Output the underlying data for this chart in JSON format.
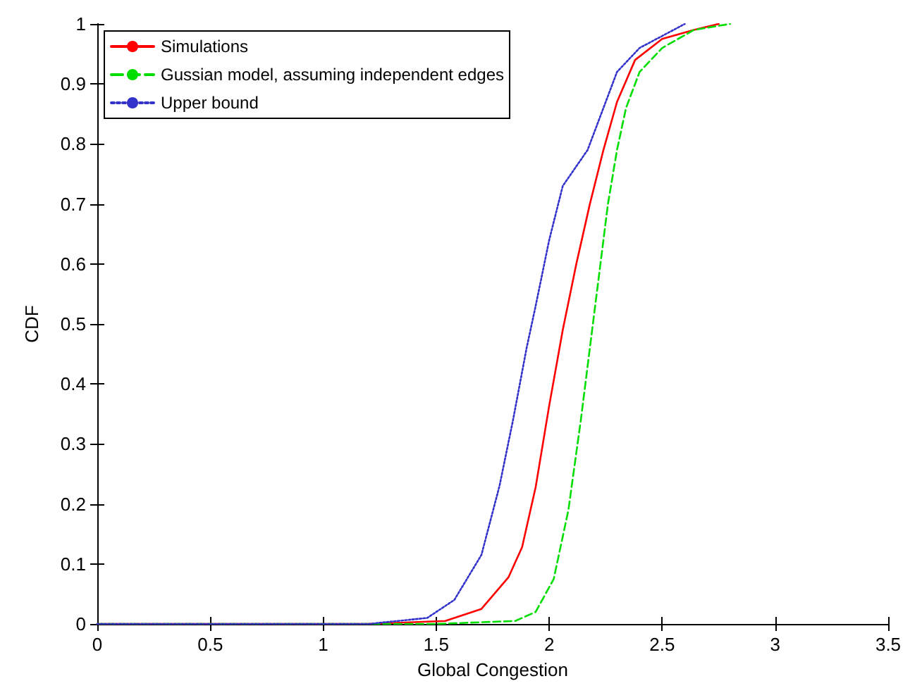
{
  "chart_data": {
    "type": "line",
    "xlabel": "Global Congestion",
    "ylabel": "CDF",
    "xlim": [
      0,
      3.5
    ],
    "xticks": [
      0,
      0.5,
      1,
      1.5,
      2,
      2.5,
      3,
      3.5
    ],
    "ylim": [
      0,
      1
    ],
    "yticks": [
      0,
      0.1,
      0.2,
      0.3,
      0.4,
      0.5,
      0.6,
      0.7,
      0.8,
      0.9,
      1
    ],
    "grid": false,
    "legend": "top left",
    "marker": "none",
    "series": [
      {
        "name": "Simulations",
        "color": "#ff0000",
        "line_style": "solid",
        "x": [
          0,
          1.2,
          1.54,
          1.7,
          1.82,
          1.88,
          1.94,
          2.0,
          2.06,
          2.12,
          2.18,
          2.24,
          2.3,
          2.38,
          2.5,
          2.64,
          2.75
        ],
        "values": [
          0,
          0,
          0.005,
          0.025,
          0.078,
          0.128,
          0.228,
          0.364,
          0.49,
          0.6,
          0.7,
          0.79,
          0.87,
          0.94,
          0.975,
          0.99,
          1
        ]
      },
      {
        "name": "Gussian model, assuming independent edges",
        "color": "#00dd00",
        "line_style": "dashed",
        "x": [
          0,
          1.5,
          1.85,
          1.94,
          2.02,
          2.085,
          2.14,
          2.18,
          2.22,
          2.26,
          2.3,
          2.34,
          2.4,
          2.5,
          2.64,
          2.8
        ],
        "values": [
          0,
          0,
          0.005,
          0.02,
          0.075,
          0.19,
          0.34,
          0.46,
          0.58,
          0.7,
          0.79,
          0.86,
          0.92,
          0.96,
          0.99,
          1
        ]
      },
      {
        "name": "Upper bound",
        "color": "#3333cc",
        "line_style": "dotted",
        "x": [
          0,
          1.2,
          1.46,
          1.58,
          1.7,
          1.78,
          1.84,
          1.9,
          1.94,
          2.0,
          2.06,
          2.17,
          2.22,
          2.3,
          2.4,
          2.6
        ],
        "values": [
          0,
          0,
          0.01,
          0.04,
          0.115,
          0.23,
          0.34,
          0.46,
          0.53,
          0.64,
          0.73,
          0.79,
          0.84,
          0.92,
          0.96,
          1
        ]
      }
    ]
  }
}
